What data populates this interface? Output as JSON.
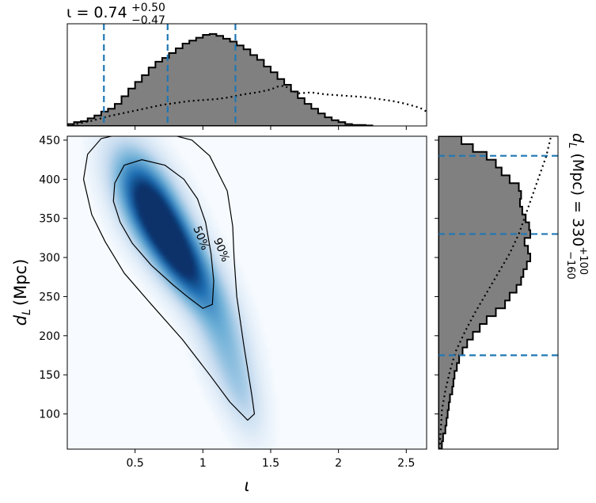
{
  "chart_data": [
    {
      "type": "area",
      "panel": "top-marginal",
      "title_main": "ι = 0.74",
      "title_sup": "+0.50",
      "title_sub": "−0.47",
      "xlim": [
        0.0,
        2.65
      ],
      "x_ticks": [
        0.5,
        1.0,
        1.5,
        2.0,
        2.5
      ],
      "vlines": [
        0.27,
        0.74,
        1.24
      ],
      "posterior_step": {
        "bin_width": 0.05,
        "x_start": 0.0,
        "heights": [
          0.02,
          0.04,
          0.05,
          0.08,
          0.11,
          0.15,
          0.18,
          0.23,
          0.31,
          0.39,
          0.46,
          0.53,
          0.61,
          0.67,
          0.71,
          0.76,
          0.81,
          0.86,
          0.89,
          0.92,
          0.95,
          0.96,
          0.94,
          0.91,
          0.88,
          0.84,
          0.8,
          0.74,
          0.69,
          0.62,
          0.56,
          0.49,
          0.43,
          0.36,
          0.29,
          0.23,
          0.18,
          0.13,
          0.09,
          0.06,
          0.04,
          0.02,
          0.01,
          0.01,
          0.005
        ]
      },
      "prior_dotted": {
        "x": [
          0.0,
          0.1,
          0.2,
          0.3,
          0.4,
          0.5,
          0.6,
          0.7,
          0.8,
          0.9,
          1.0,
          1.1,
          1.2,
          1.3,
          1.4,
          1.5,
          1.55,
          1.6,
          1.65,
          1.7,
          1.8,
          1.9,
          2.0,
          2.1,
          2.2,
          2.3,
          2.4,
          2.5,
          2.6,
          2.65
        ],
        "y": [
          0.0,
          0.03,
          0.06,
          0.1,
          0.13,
          0.16,
          0.19,
          0.22,
          0.24,
          0.26,
          0.27,
          0.28,
          0.3,
          0.33,
          0.35,
          0.38,
          0.41,
          0.42,
          0.38,
          0.34,
          0.35,
          0.33,
          0.32,
          0.31,
          0.3,
          0.28,
          0.26,
          0.23,
          0.19,
          0.15
        ]
      }
    },
    {
      "type": "heatmap",
      "panel": "joint",
      "xlabel": "ι",
      "ylabel_main": "d",
      "ylabel_sub": "L",
      "ylabel_unit": "(Mpc)",
      "xlim": [
        0.0,
        2.65
      ],
      "ylim": [
        55,
        455
      ],
      "x_ticks": [
        0.5,
        1.0,
        1.5,
        2.0,
        2.5
      ],
      "y_ticks": [
        100,
        150,
        200,
        250,
        300,
        350,
        400,
        450
      ],
      "colormap": [
        "#f7fbff",
        "#c6dbef",
        "#6baed6",
        "#2171b5",
        "#08306b"
      ],
      "contours": [
        {
          "label": "50%",
          "points": [
            [
              0.35,
              395
            ],
            [
              0.42,
              418
            ],
            [
              0.55,
              425
            ],
            [
              0.72,
              418
            ],
            [
              0.86,
              400
            ],
            [
              0.96,
              375
            ],
            [
              1.02,
              345
            ],
            [
              1.06,
              305
            ],
            [
              1.08,
              270
            ],
            [
              1.07,
              240
            ],
            [
              1.0,
              235
            ],
            [
              0.9,
              248
            ],
            [
              0.78,
              265
            ],
            [
              0.62,
              290
            ],
            [
              0.48,
              318
            ],
            [
              0.39,
              345
            ],
            [
              0.34,
              372
            ],
            [
              0.35,
              395
            ]
          ]
        },
        {
          "label": "90%",
          "points": [
            [
              0.12,
              400
            ],
            [
              0.15,
              432
            ],
            [
              0.25,
              452
            ],
            [
              0.45,
              460
            ],
            [
              0.7,
              460
            ],
            [
              0.92,
              450
            ],
            [
              1.05,
              430
            ],
            [
              1.18,
              385
            ],
            [
              1.22,
              340
            ],
            [
              1.23,
              300
            ],
            [
              1.25,
              250
            ],
            [
              1.3,
              190
            ],
            [
              1.36,
              125
            ],
            [
              1.38,
              100
            ],
            [
              1.33,
              92
            ],
            [
              1.2,
              115
            ],
            [
              1.05,
              150
            ],
            [
              0.85,
              195
            ],
            [
              0.62,
              240
            ],
            [
              0.42,
              280
            ],
            [
              0.28,
              320
            ],
            [
              0.18,
              355
            ],
            [
              0.12,
              400
            ]
          ]
        }
      ]
    },
    {
      "type": "area",
      "panel": "right-marginal",
      "label_main": "d",
      "label_sub": "L",
      "label_rest": " (Mpc) = 330",
      "label_sup": "+100",
      "label_sub2": "−160",
      "ylim": [
        55,
        455
      ],
      "hlines": [
        430,
        330,
        175
      ],
      "posterior_step": {
        "bin_width": 10,
        "y_start": 55,
        "widths": [
          0.03,
          0.04,
          0.06,
          0.07,
          0.08,
          0.09,
          0.1,
          0.12,
          0.13,
          0.14,
          0.16,
          0.18,
          0.21,
          0.25,
          0.3,
          0.36,
          0.42,
          0.5,
          0.58,
          0.62,
          0.68,
          0.72,
          0.74,
          0.77,
          0.8,
          0.78,
          0.75,
          0.8,
          0.79,
          0.76,
          0.73,
          0.71,
          0.72,
          0.7,
          0.62,
          0.55,
          0.5,
          0.42,
          0.3,
          0.2
        ]
      },
      "prior_dotted": {
        "y": [
          55,
          80,
          105,
          130,
          155,
          180,
          205,
          230,
          255,
          280,
          305,
          330,
          355,
          380,
          405,
          430,
          455
        ],
        "x": [
          0.01,
          0.02,
          0.03,
          0.06,
          0.1,
          0.15,
          0.23,
          0.32,
          0.42,
          0.52,
          0.62,
          0.7,
          0.76,
          0.82,
          0.88,
          0.94,
          0.98
        ]
      }
    }
  ]
}
